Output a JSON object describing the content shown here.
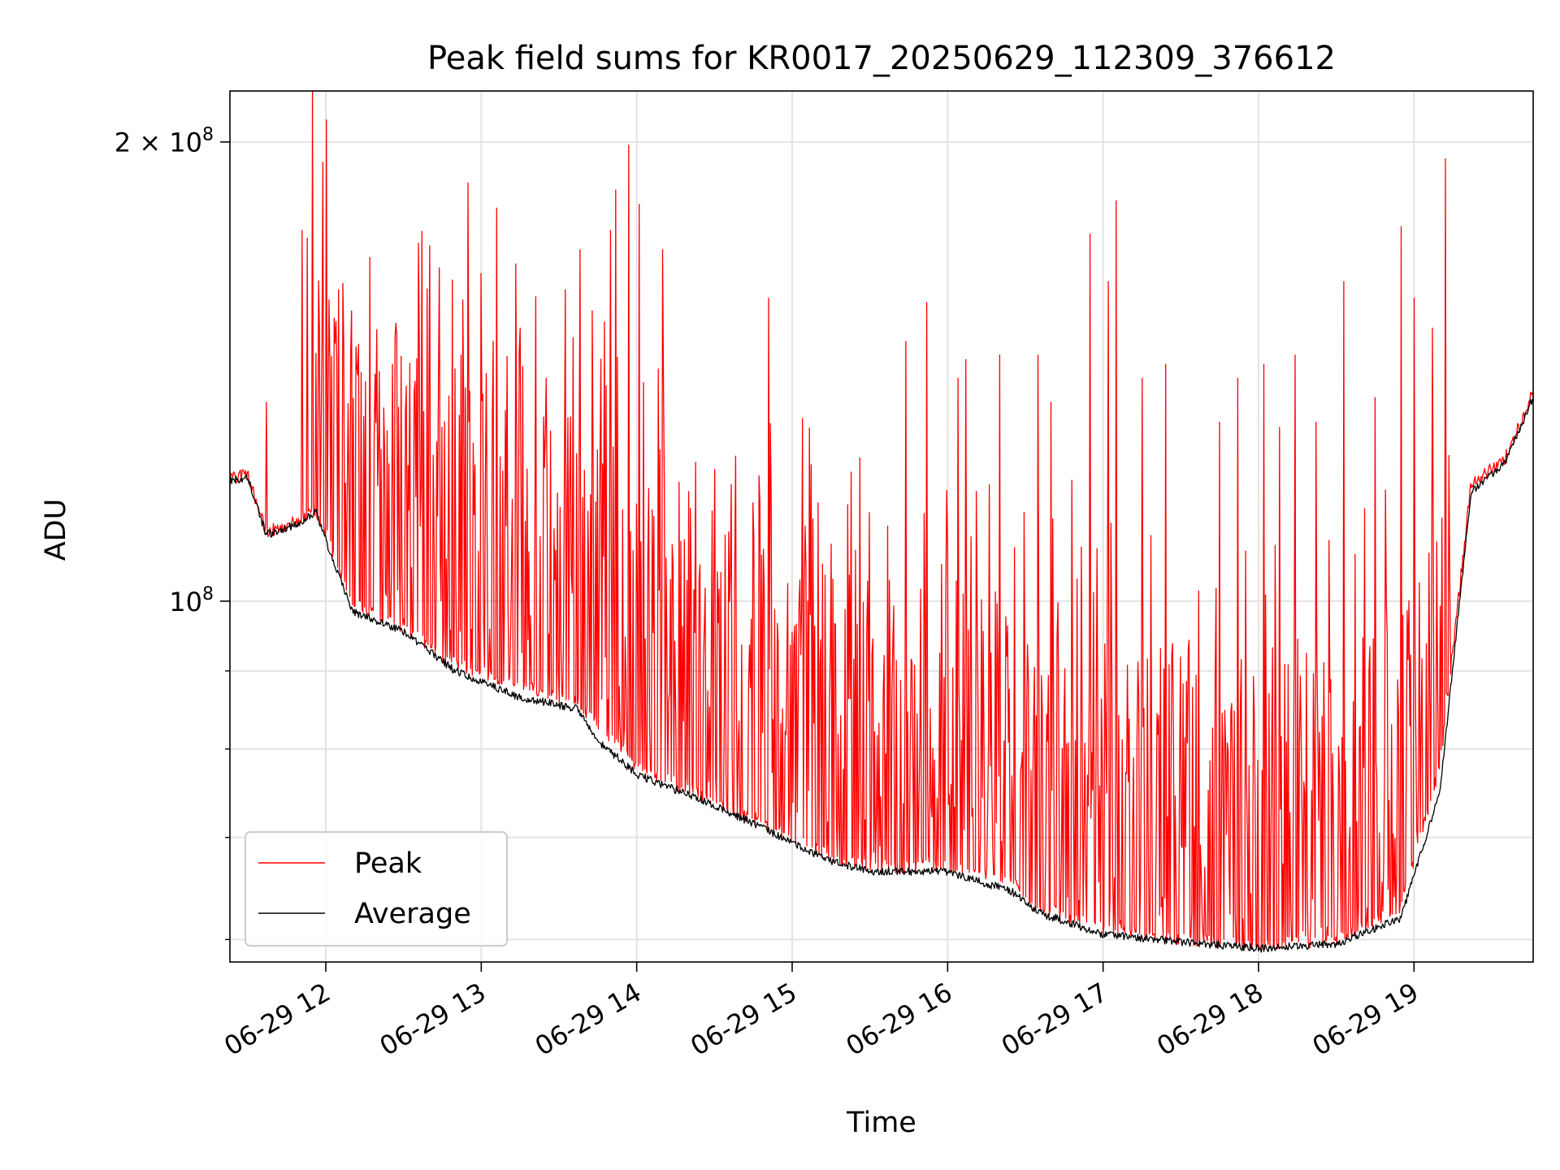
{
  "chart_data": {
    "type": "line",
    "title": "Peak field sums for KR0017_20250629_112309_376612",
    "xlabel": "Time",
    "ylabel": "ADU",
    "x_axis_type": "time",
    "xlim": [
      "2025-06-29T11:23",
      "2025-06-29T19:46"
    ],
    "x_ticks": [
      {
        "time": "2025-06-29T12:00",
        "label": "06-29 12"
      },
      {
        "time": "2025-06-29T13:00",
        "label": "06-29 13"
      },
      {
        "time": "2025-06-29T14:00",
        "label": "06-29 14"
      },
      {
        "time": "2025-06-29T15:00",
        "label": "06-29 15"
      },
      {
        "time": "2025-06-29T16:00",
        "label": "06-29 16"
      },
      {
        "time": "2025-06-29T17:00",
        "label": "06-29 17"
      },
      {
        "time": "2025-06-29T18:00",
        "label": "06-29 18"
      },
      {
        "time": "2025-06-29T19:00",
        "label": "06-29 19"
      }
    ],
    "y_scale": "log",
    "ylim": [
      58000000,
      216000000
    ],
    "y_ticks_major": [
      {
        "value": 100000000,
        "label_base": "10",
        "label_exp": "8",
        "label_prefix": ""
      },
      {
        "value": 200000000,
        "label_base": "10",
        "label_exp": "8",
        "label_prefix": "2 × "
      }
    ],
    "y_ticks_minor": [
      60000000,
      70000000,
      80000000,
      90000000
    ],
    "grid": true,
    "legend_position": "lower-left",
    "series": [
      {
        "name": "Peak",
        "color": "#ff0000",
        "x": [
          "2025-06-29T11:23",
          "2025-06-29T11:30",
          "2025-06-29T11:37",
          "2025-06-29T11:50",
          "2025-06-29T11:56",
          "2025-06-29T12:10",
          "2025-06-29T12:30",
          "2025-06-29T12:50",
          "2025-06-29T13:15",
          "2025-06-29T13:37",
          "2025-06-29T13:45",
          "2025-06-29T14:00",
          "2025-06-29T14:30",
          "2025-06-29T15:00",
          "2025-06-29T15:15",
          "2025-06-29T15:30",
          "2025-06-29T16:00",
          "2025-06-29T16:25",
          "2025-06-29T16:35",
          "2025-06-29T17:00",
          "2025-06-29T17:30",
          "2025-06-29T18:00",
          "2025-06-29T18:30",
          "2025-06-29T18:55",
          "2025-06-29T19:10",
          "2025-06-29T19:22",
          "2025-06-29T19:35",
          "2025-06-29T19:46"
        ],
        "y": [
          120500000,
          121000000,
          111000000,
          113000000,
          115000000,
          100000000,
          96000000,
          91000000,
          88000000,
          86000000,
          83000000,
          78000000,
          74000000,
          70000000,
          68000000,
          67000000,
          67000000,
          65500000,
          63000000,
          61000000,
          60000000,
          59500000,
          60000000,
          63000000,
          78000000,
          119000000,
          124000000,
          137000000
        ],
        "spikes": [
          [
            "2025-06-29T11:37",
            135000000
          ],
          [
            "2025-06-29T11:51",
            175000000
          ],
          [
            "2025-06-29T11:53",
            173000000
          ],
          [
            "2025-06-29T11:55",
            217000000
          ],
          [
            "2025-06-29T11:59",
            194000000
          ],
          [
            "2025-06-29T12:05",
            160000000
          ],
          [
            "2025-06-29T12:10",
            155000000
          ],
          [
            "2025-06-29T12:17",
            168000000
          ],
          [
            "2025-06-29T12:28",
            134000000
          ],
          [
            "2025-06-29T12:40",
            171000000
          ],
          [
            "2025-06-29T12:50",
            142000000
          ],
          [
            "2025-06-29T12:55",
            188000000
          ],
          [
            "2025-06-29T13:00",
            164000000
          ],
          [
            "2025-06-29T13:02",
            141000000
          ],
          [
            "2025-06-29T13:06",
            181000000
          ],
          [
            "2025-06-29T13:15",
            151000000
          ],
          [
            "2025-06-29T13:25",
            140000000
          ],
          [
            "2025-06-29T13:38",
            170000000
          ],
          [
            "2025-06-29T13:43",
            155000000
          ],
          [
            "2025-06-29T13:50",
            175000000
          ],
          [
            "2025-06-29T13:52",
            186000000
          ],
          [
            "2025-06-29T13:57",
            199000000
          ],
          [
            "2025-06-29T14:01",
            182000000
          ],
          [
            "2025-06-29T14:10",
            170000000
          ],
          [
            "2025-06-29T14:20",
            118000000
          ],
          [
            "2025-06-29T14:30",
            122000000
          ],
          [
            "2025-06-29T14:45",
            116000000
          ],
          [
            "2025-06-29T14:51",
            158000000
          ],
          [
            "2025-06-29T15:05",
            112000000
          ],
          [
            "2025-06-29T15:15",
            109000000
          ],
          [
            "2025-06-29T15:22",
            104000000
          ],
          [
            "2025-06-29T15:37",
            112000000
          ],
          [
            "2025-06-29T15:44",
            148000000
          ],
          [
            "2025-06-29T15:52",
            157000000
          ],
          [
            "2025-06-29T16:04",
            140000000
          ],
          [
            "2025-06-29T16:07",
            144000000
          ],
          [
            "2025-06-29T16:11",
            118000000
          ],
          [
            "2025-06-29T16:20",
            145000000
          ],
          [
            "2025-06-29T16:35",
            145000000
          ],
          [
            "2025-06-29T16:40",
            135000000
          ],
          [
            "2025-06-29T16:48",
            120000000
          ],
          [
            "2025-06-29T16:55",
            174000000
          ],
          [
            "2025-06-29T17:02",
            162000000
          ],
          [
            "2025-06-29T17:05",
            183000000
          ],
          [
            "2025-06-29T17:15",
            140000000
          ],
          [
            "2025-06-29T17:24",
            143000000
          ],
          [
            "2025-06-29T17:45",
            131000000
          ],
          [
            "2025-06-29T17:52",
            140000000
          ],
          [
            "2025-06-29T18:02",
            143000000
          ],
          [
            "2025-06-29T18:08",
            130000000
          ],
          [
            "2025-06-29T18:14",
            145000000
          ],
          [
            "2025-06-29T18:22",
            131000000
          ],
          [
            "2025-06-29T18:33",
            162000000
          ],
          [
            "2025-06-29T18:45",
            136000000
          ],
          [
            "2025-06-29T18:55",
            176000000
          ],
          [
            "2025-06-29T19:00",
            158000000
          ],
          [
            "2025-06-29T19:07",
            151000000
          ],
          [
            "2025-06-29T19:12",
            195000000
          ]
        ]
      },
      {
        "name": "Average",
        "color": "#000000",
        "x": [
          "2025-06-29T11:23",
          "2025-06-29T11:30",
          "2025-06-29T11:37",
          "2025-06-29T11:50",
          "2025-06-29T11:56",
          "2025-06-29T12:10",
          "2025-06-29T12:30",
          "2025-06-29T12:50",
          "2025-06-29T13:15",
          "2025-06-29T13:37",
          "2025-06-29T13:45",
          "2025-06-29T14:00",
          "2025-06-29T14:30",
          "2025-06-29T15:00",
          "2025-06-29T15:15",
          "2025-06-29T15:30",
          "2025-06-29T16:00",
          "2025-06-29T16:25",
          "2025-06-29T16:35",
          "2025-06-29T17:00",
          "2025-06-29T17:30",
          "2025-06-29T18:00",
          "2025-06-29T18:30",
          "2025-06-29T18:55",
          "2025-06-29T19:10",
          "2025-06-29T19:22",
          "2025-06-29T19:35",
          "2025-06-29T19:46"
        ],
        "y": [
          120000000,
          120500000,
          110500000,
          112500000,
          114500000,
          98500000,
          95500000,
          90000000,
          86500000,
          85000000,
          81000000,
          77000000,
          73500000,
          69500000,
          67500000,
          66500000,
          66500000,
          64500000,
          62500000,
          60500000,
          59800000,
          59200000,
          59600000,
          62000000,
          75000000,
          118000000,
          123000000,
          136000000
        ]
      }
    ]
  }
}
